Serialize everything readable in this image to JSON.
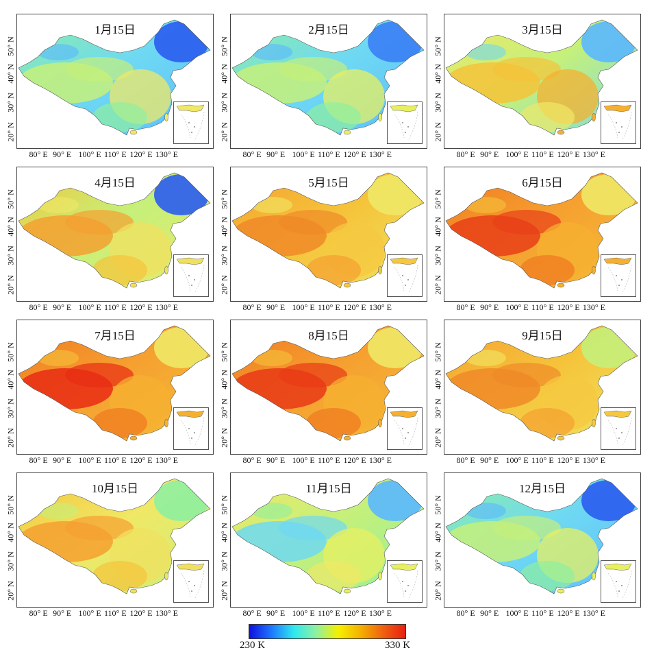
{
  "panels": [
    {
      "title": "1月15日",
      "colors": [
        "#5ab8ff",
        "#6fd9f2",
        "#8ff0a0",
        "#c5f07a",
        "#f0e866",
        "#2a5cf0"
      ]
    },
    {
      "title": "2月15日",
      "colors": [
        "#5ab8ff",
        "#6fd9f2",
        "#8ff0a0",
        "#c5f07a",
        "#e8f060",
        "#3a80f5"
      ]
    },
    {
      "title": "3月15日",
      "colors": [
        "#6fd9f2",
        "#c5f07a",
        "#f0e866",
        "#f5c33a",
        "#f5b030",
        "#5ab8ff"
      ]
    },
    {
      "title": "4月15日",
      "colors": [
        "#f0e866",
        "#c5f07a",
        "#f5c33a",
        "#f5a030",
        "#f0e060",
        "#2a5cf0"
      ]
    },
    {
      "title": "5月15日",
      "colors": [
        "#f0e866",
        "#f5c33a",
        "#f5a030",
        "#f08a28",
        "#f5c840",
        "#f0e866"
      ]
    },
    {
      "title": "6月15日",
      "colors": [
        "#f5c33a",
        "#f5a030",
        "#f07820",
        "#e84018",
        "#f5b030",
        "#f0e866"
      ]
    },
    {
      "title": "7月15日",
      "colors": [
        "#f5c33a",
        "#f5a030",
        "#f07820",
        "#e82c14",
        "#f5b030",
        "#f0e866"
      ]
    },
    {
      "title": "8月15日",
      "colors": [
        "#f5c33a",
        "#f5a030",
        "#f07820",
        "#e83a16",
        "#f5b030",
        "#f0e866"
      ]
    },
    {
      "title": "9月15日",
      "colors": [
        "#f0e866",
        "#f5c33a",
        "#f5a030",
        "#f08a28",
        "#f5c840",
        "#c5f07a"
      ]
    },
    {
      "title": "10月15日",
      "colors": [
        "#c5f07a",
        "#f0e866",
        "#f5c33a",
        "#f5a030",
        "#f0e060",
        "#8ff0a0"
      ]
    },
    {
      "title": "11月15日",
      "colors": [
        "#8ff0a0",
        "#c5f07a",
        "#f0e866",
        "#6fd9f2",
        "#e8f060",
        "#5ab8ff"
      ]
    },
    {
      "title": "12月15日",
      "colors": [
        "#5ab8ff",
        "#6fd9f2",
        "#8ff0a0",
        "#c5f07a",
        "#e8f060",
        "#2a5cf0"
      ]
    }
  ],
  "axes": {
    "x_ticks": [
      "80° E",
      "90° E",
      "100° E",
      "110° E",
      "120° E",
      "130° E"
    ],
    "y_ticks": [
      "50° N",
      "40° N",
      "30° N",
      "20° N"
    ]
  },
  "colorbar": {
    "min_label": "230 K",
    "max_label": "330 K",
    "min": 230,
    "max": 330,
    "unit": "K",
    "colors": [
      "#1010e0",
      "#1e78ff",
      "#2ee8f0",
      "#8ff0a0",
      "#f5f000",
      "#f5b000",
      "#f06010",
      "#e82010"
    ]
  }
}
